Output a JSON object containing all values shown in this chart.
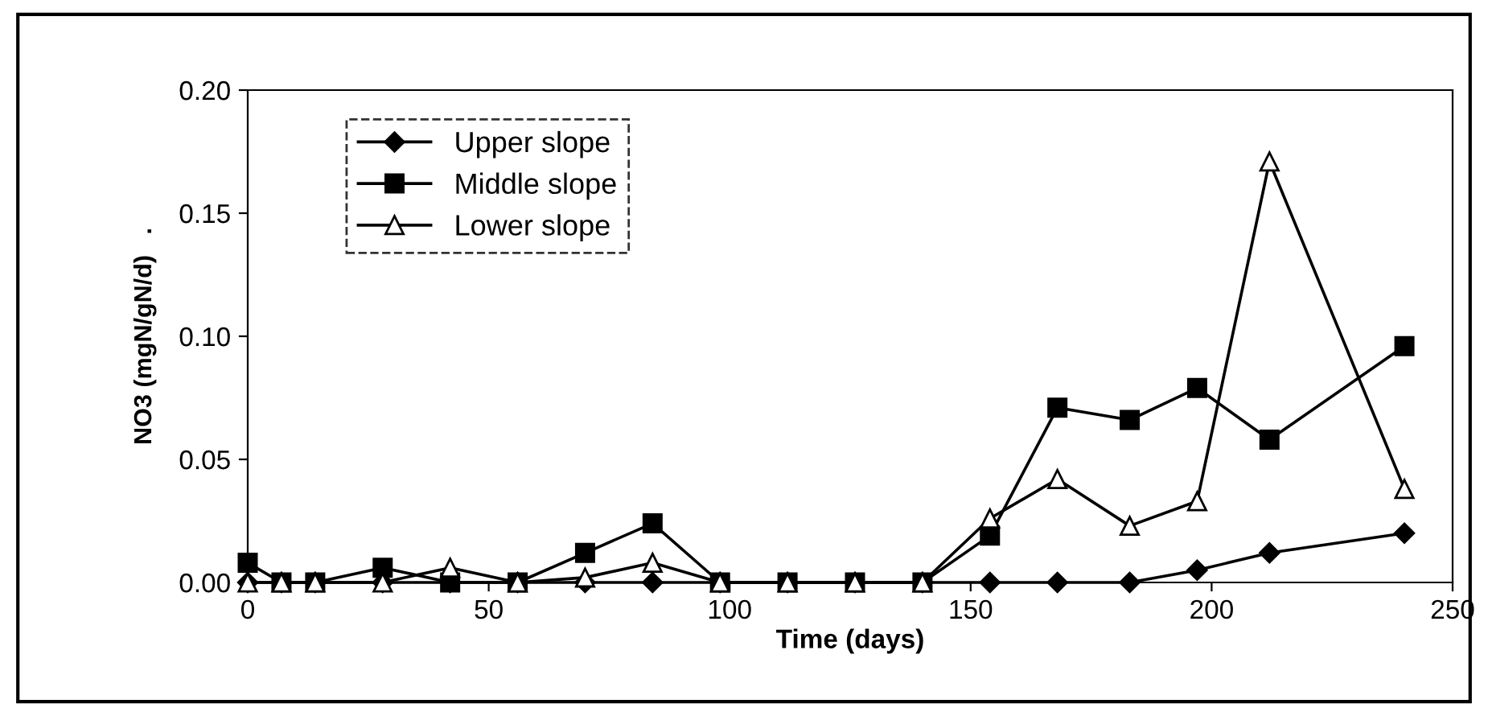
{
  "chart_data": {
    "type": "line",
    "xlabel": "Time (days)",
    "ylabel": "NO3 (mgN/gN/d)   .",
    "x": [
      0,
      7,
      14,
      28,
      42,
      56,
      70,
      84,
      98,
      112,
      126,
      140,
      154,
      168,
      183,
      197,
      212,
      240
    ],
    "series": [
      {
        "name": "Upper slope",
        "color": "#000000",
        "marker": "diamond",
        "values": [
          0,
          0,
          0,
          0,
          0,
          0,
          0,
          0,
          0,
          0,
          0,
          0,
          0,
          0,
          0,
          0.005,
          0.012,
          0.02
        ]
      },
      {
        "name": "Middle slope",
        "color": "#000000",
        "marker": "square",
        "values": [
          0.008,
          0,
          0,
          0.006,
          0,
          0,
          0.012,
          0.024,
          0,
          0,
          0,
          0,
          0.019,
          0.071,
          0.066,
          0.079,
          0.058,
          0.096
        ]
      },
      {
        "name": "Lower slope",
        "color": "#000000",
        "marker": "triangle",
        "values": [
          0,
          0,
          0,
          0,
          0.006,
          0,
          0.002,
          0.008,
          0,
          0,
          0,
          0,
          0.026,
          0.042,
          0.023,
          0.033,
          0.171,
          0.038
        ]
      }
    ],
    "xlim": [
      0,
      250
    ],
    "xticks": [
      0,
      50,
      100,
      150,
      200,
      250
    ],
    "ylim": [
      0,
      0.2
    ],
    "yticks": [
      {
        "value": 0,
        "label": "0.00"
      },
      {
        "value": 0.05,
        "label": "0.05"
      },
      {
        "value": 0.1,
        "label": "0.10"
      },
      {
        "value": 0.15,
        "label": "0.15"
      },
      {
        "value": 0.2,
        "label": "0.20"
      }
    ],
    "grid": false,
    "legend": "top left",
    "line_style": "solid"
  }
}
